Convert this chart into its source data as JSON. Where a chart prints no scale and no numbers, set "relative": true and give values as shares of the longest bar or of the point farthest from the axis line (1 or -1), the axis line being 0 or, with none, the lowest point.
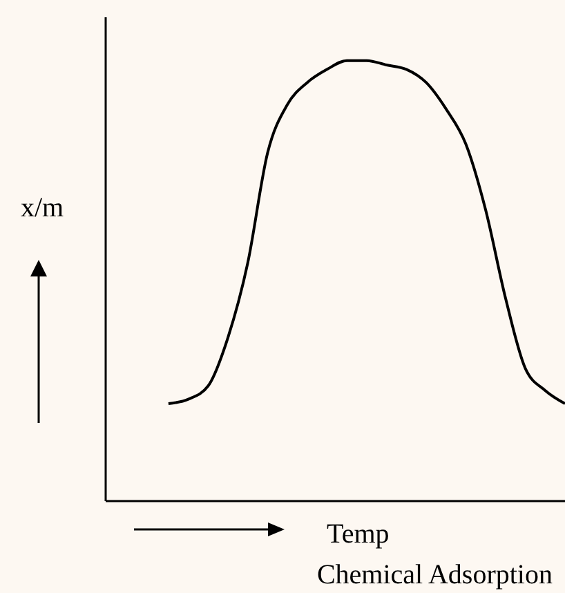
{
  "chart_data": {
    "type": "line",
    "title": "Chemical Adsorption",
    "xlabel": "Temp",
    "ylabel": "x/m",
    "relative": true,
    "categories": [
      null,
      null,
      null,
      null,
      null,
      null,
      null,
      null,
      null,
      null,
      null,
      null,
      null,
      null,
      null,
      null,
      null,
      null,
      null,
      null,
      null
    ],
    "series": [
      {
        "color": "#000000",
        "values": [
          0.22,
          0.23,
          0.26,
          0.37,
          0.54,
          0.79,
          0.9,
          0.95,
          0.98,
          1,
          1,
          0.99,
          0.98,
          0.95,
          0.89,
          0.81,
          0.66,
          0.46,
          0.3,
          0.25,
          0.22
        ]
      }
    ],
    "marker": "none",
    "line_style": "solid",
    "grid": false
  }
}
